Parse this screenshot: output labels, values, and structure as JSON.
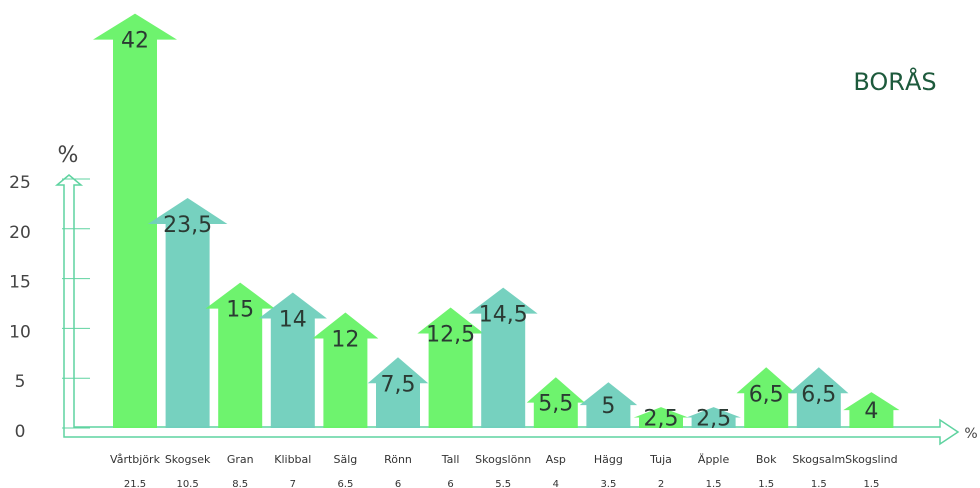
{
  "chart_data": {
    "type": "arrow-bar",
    "title": "BORÅS",
    "y_label": "%",
    "x_label": "%",
    "categories": [
      "Vårtbjörk",
      "Skogsek",
      "Gran",
      "Klibbal",
      "Sälg",
      "Rönn",
      "Tall",
      "Skogslönn",
      "Asp",
      "Hägg",
      "Tuja",
      "Äpple",
      "Bok",
      "Skogsalm",
      "Skogslind"
    ],
    "values": [
      42,
      23.5,
      15,
      14,
      12,
      7.5,
      12.5,
      14.5,
      5.5,
      5,
      2.5,
      2.5,
      6.5,
      6.5,
      4
    ],
    "value_labels": [
      "42",
      "23,5",
      "15",
      "14",
      "12",
      "7,5",
      "12,5",
      "14,5",
      "5,5",
      "5",
      "2,5",
      "2,5",
      "6,5",
      "6,5",
      "4"
    ],
    "colors": [
      "#66f266",
      "#6fcfbc",
      "#66f266",
      "#6fcfbc",
      "#66f266",
      "#6fcfbc",
      "#66f266",
      "#6fcfbc",
      "#66f266",
      "#6fcfbc",
      "#66f266",
      "#6fcfbc",
      "#66f266",
      "#6fcfbc",
      "#66f266"
    ],
    "secondary_values": [
      21.5,
      10.5,
      8.5,
      7,
      6.5,
      6,
      6,
      5.5,
      4,
      3.5,
      2,
      1.5,
      1.5,
      1.5,
      1.5
    ],
    "ylim": [
      0,
      25
    ],
    "yticks": [
      0,
      5,
      10,
      15,
      20,
      25
    ]
  }
}
